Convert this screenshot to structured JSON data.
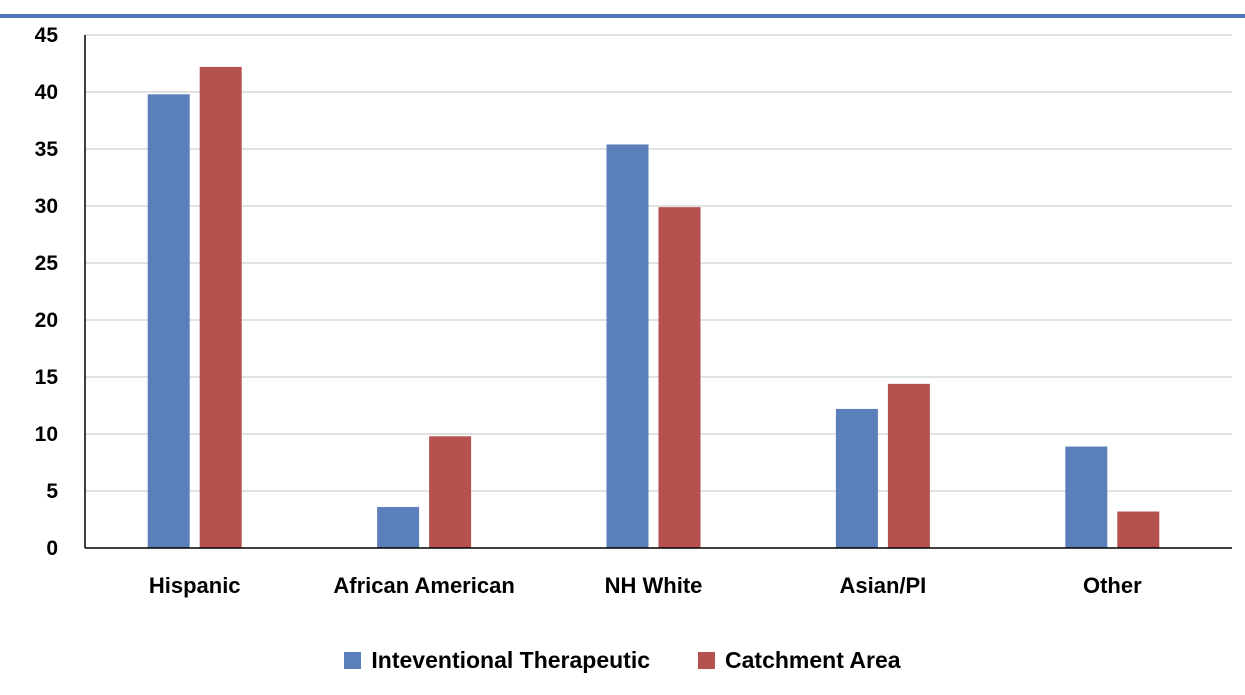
{
  "colors": {
    "series_1": "#5b7fba",
    "series_2": "#b5524f",
    "top_rule": "#4f75b5",
    "gridline": "#d9d9d9",
    "axis": "#000000"
  },
  "chart_data": {
    "type": "bar",
    "title": "",
    "xlabel": "",
    "ylabel": "",
    "categories": [
      "Hispanic",
      "African American",
      "NH White",
      "Asian/PI",
      "Other"
    ],
    "series": [
      {
        "name": "Inteventional Therapeutic",
        "values": [
          39.8,
          3.6,
          35.4,
          12.2,
          8.9
        ]
      },
      {
        "name": "Catchment Area",
        "values": [
          42.2,
          9.8,
          29.9,
          14.4,
          3.2
        ]
      }
    ],
    "ylim": [
      0,
      45
    ],
    "yticks": [
      0,
      5,
      10,
      15,
      20,
      25,
      30,
      35,
      40,
      45
    ],
    "grid": true,
    "legend_position": "bottom"
  }
}
